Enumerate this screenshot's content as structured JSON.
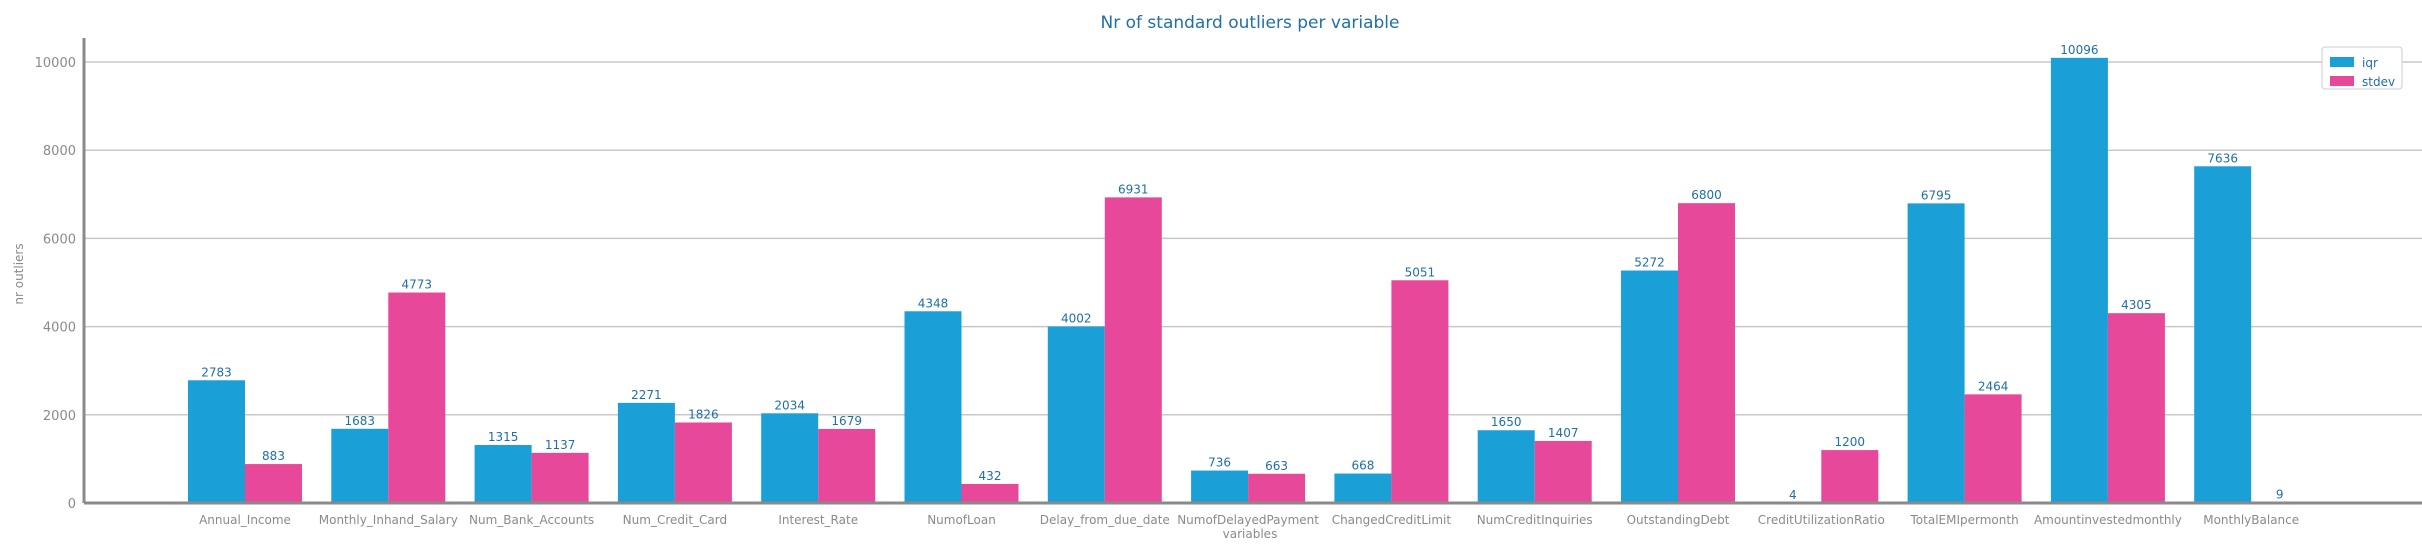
{
  "chart_data": {
    "type": "bar",
    "title": "Nr of standard outliers per variable",
    "xlabel": "variables",
    "ylabel": "nr outliers",
    "categories": [
      "Annual_Income",
      "Monthly_Inhand_Salary",
      "Num_Bank_Accounts",
      "Num_Credit_Card",
      "Interest_Rate",
      "NumofLoan",
      "Delay_from_due_date",
      "NumofDelayedPayment",
      "ChangedCreditLimit",
      "NumCreditInquiries",
      "OutstandingDebt",
      "CreditUtilizationRatio",
      "TotalEMIpermonth",
      "Amountinvestedmonthly",
      "MonthlyBalance"
    ],
    "series": [
      {
        "name": "iqr",
        "color": "#1a9fd6",
        "values": [
          2783,
          1683,
          1315,
          2271,
          2034,
          4348,
          4002,
          736,
          668,
          1650,
          5272,
          4,
          6795,
          10096,
          7636
        ]
      },
      {
        "name": "stdev",
        "color": "#e84899",
        "values": [
          883,
          4773,
          1137,
          1826,
          1679,
          432,
          6931,
          663,
          5051,
          1407,
          6800,
          1200,
          2464,
          4305,
          9
        ]
      }
    ],
    "ylim": [
      0,
      10500
    ],
    "yticks": [
      0,
      2000,
      4000,
      6000,
      8000,
      10000
    ],
    "grid": "horizontal",
    "legend_position": "top-right",
    "colors": {
      "title": "#1f6fa8",
      "data_label": "#1f6fa8",
      "tick_label": "#8a8a8a",
      "grid": "#c8c8c8",
      "axis": "#8a8a8a"
    }
  }
}
